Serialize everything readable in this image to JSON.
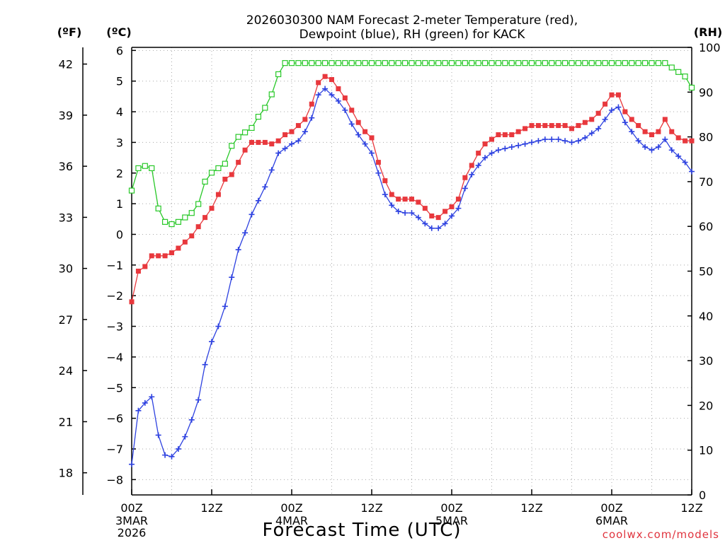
{
  "chart_data": {
    "type": "line",
    "title_lines": [
      "2026030300 NAM Forecast 2-meter Temperature (red),",
      "Dewpoint (blue), RH (green) for KACK"
    ],
    "xlabel": "Forecast Time (UTC)",
    "credit": "coolwx.com/models",
    "unit_labels": {
      "fahrenheit": "(ºF)",
      "celsius": "(ºC)",
      "rh": "(RH)"
    },
    "x_units": "forecast hour from 2026-03-03 00Z",
    "xlim": [
      0,
      84
    ],
    "x_ticks": [
      {
        "x": 0,
        "label": "00Z",
        "sublabels": [
          "3MAR",
          "2026"
        ]
      },
      {
        "x": 12,
        "label": "12Z",
        "sublabels": []
      },
      {
        "x": 24,
        "label": "00Z",
        "sublabels": [
          "4MAR"
        ]
      },
      {
        "x": 36,
        "label": "12Z",
        "sublabels": []
      },
      {
        "x": 48,
        "label": "00Z",
        "sublabels": [
          "5MAR"
        ]
      },
      {
        "x": 60,
        "label": "12Z",
        "sublabels": []
      },
      {
        "x": 72,
        "label": "00Z",
        "sublabels": [
          "6MAR"
        ]
      },
      {
        "x": 84,
        "label": "12Z",
        "sublabels": []
      }
    ],
    "y_celsius": {
      "lim": [
        -8.5,
        6.1
      ],
      "ticks": [
        -8,
        -7,
        -6,
        -5,
        -4,
        -3,
        -2,
        -1,
        0,
        1,
        2,
        3,
        4,
        5,
        6
      ],
      "tick_labels": [
        "−8",
        "−7",
        "−6",
        "−5",
        "−4",
        "−3",
        "−2",
        "−1",
        "0",
        "1",
        "2",
        "3",
        "4",
        "5",
        "6"
      ]
    },
    "y_fahrenheit": {
      "ticks": [
        18,
        21,
        24,
        27,
        30,
        33,
        36,
        39,
        42
      ]
    },
    "y_rh": {
      "lim": [
        0,
        100
      ],
      "ticks": [
        0,
        10,
        20,
        30,
        40,
        50,
        60,
        70,
        80,
        90,
        100
      ]
    },
    "grid": true,
    "series": [
      {
        "name": "Temperature",
        "color": "#e8383d",
        "marker": "filled-square",
        "axis": "celsius",
        "points": [
          [
            0,
            -2.2
          ],
          [
            1,
            -1.2
          ],
          [
            2,
            -1.05
          ],
          [
            3,
            -0.7
          ],
          [
            4,
            -0.7
          ],
          [
            5,
            -0.7
          ],
          [
            6,
            -0.6
          ],
          [
            7,
            -0.45
          ],
          [
            8,
            -0.25
          ],
          [
            9,
            -0.05
          ],
          [
            10,
            0.25
          ],
          [
            11,
            0.55
          ],
          [
            12,
            0.85
          ],
          [
            13,
            1.3
          ],
          [
            14,
            1.8
          ],
          [
            15,
            1.95
          ],
          [
            16,
            2.35
          ],
          [
            17,
            2.75
          ],
          [
            18,
            3.0
          ],
          [
            19,
            3.0
          ],
          [
            20,
            3.0
          ],
          [
            21,
            2.95
          ],
          [
            22,
            3.05
          ],
          [
            23,
            3.25
          ],
          [
            24,
            3.35
          ],
          [
            25,
            3.55
          ],
          [
            26,
            3.75
          ],
          [
            27,
            4.25
          ],
          [
            28,
            4.95
          ],
          [
            29,
            5.15
          ],
          [
            30,
            5.05
          ],
          [
            31,
            4.75
          ],
          [
            32,
            4.45
          ],
          [
            33,
            4.05
          ],
          [
            34,
            3.65
          ],
          [
            35,
            3.35
          ],
          [
            36,
            3.15
          ],
          [
            37,
            2.35
          ],
          [
            38,
            1.75
          ],
          [
            39,
            1.3
          ],
          [
            40,
            1.15
          ],
          [
            41,
            1.15
          ],
          [
            42,
            1.15
          ],
          [
            43,
            1.05
          ],
          [
            44,
            0.85
          ],
          [
            45,
            0.6
          ],
          [
            46,
            0.55
          ],
          [
            47,
            0.75
          ],
          [
            48,
            0.9
          ],
          [
            49,
            1.15
          ],
          [
            50,
            1.85
          ],
          [
            51,
            2.25
          ],
          [
            52,
            2.65
          ],
          [
            53,
            2.95
          ],
          [
            54,
            3.1
          ],
          [
            55,
            3.25
          ],
          [
            56,
            3.25
          ],
          [
            57,
            3.25
          ],
          [
            58,
            3.35
          ],
          [
            59,
            3.45
          ],
          [
            60,
            3.55
          ],
          [
            61,
            3.55
          ],
          [
            62,
            3.55
          ],
          [
            63,
            3.55
          ],
          [
            64,
            3.55
          ],
          [
            65,
            3.55
          ],
          [
            66,
            3.45
          ],
          [
            67,
            3.55
          ],
          [
            68,
            3.65
          ],
          [
            69,
            3.75
          ],
          [
            70,
            3.95
          ],
          [
            71,
            4.25
          ],
          [
            72,
            4.55
          ],
          [
            73,
            4.55
          ],
          [
            74,
            4.0
          ],
          [
            75,
            3.75
          ],
          [
            76,
            3.55
          ],
          [
            77,
            3.35
          ],
          [
            78,
            3.25
          ],
          [
            79,
            3.35
          ],
          [
            80,
            3.75
          ],
          [
            81,
            3.35
          ],
          [
            82,
            3.15
          ],
          [
            83,
            3.05
          ],
          [
            84,
            3.05
          ]
        ]
      },
      {
        "name": "Dewpoint",
        "color": "#2d41e0",
        "marker": "plus",
        "axis": "celsius",
        "points": [
          [
            0,
            -7.5
          ],
          [
            1,
            -5.75
          ],
          [
            2,
            -5.5
          ],
          [
            3,
            -5.3
          ],
          [
            4,
            -6.55
          ],
          [
            5,
            -7.2
          ],
          [
            6,
            -7.25
          ],
          [
            7,
            -7.0
          ],
          [
            8,
            -6.6
          ],
          [
            9,
            -6.05
          ],
          [
            10,
            -5.4
          ],
          [
            11,
            -4.25
          ],
          [
            12,
            -3.5
          ],
          [
            13,
            -3.0
          ],
          [
            14,
            -2.35
          ],
          [
            15,
            -1.4
          ],
          [
            16,
            -0.5
          ],
          [
            17,
            0.05
          ],
          [
            18,
            0.65
          ],
          [
            19,
            1.1
          ],
          [
            20,
            1.55
          ],
          [
            21,
            2.1
          ],
          [
            22,
            2.65
          ],
          [
            23,
            2.8
          ],
          [
            24,
            2.95
          ],
          [
            25,
            3.05
          ],
          [
            26,
            3.35
          ],
          [
            27,
            3.8
          ],
          [
            28,
            4.55
          ],
          [
            29,
            4.75
          ],
          [
            30,
            4.55
          ],
          [
            31,
            4.35
          ],
          [
            32,
            4.05
          ],
          [
            33,
            3.6
          ],
          [
            34,
            3.25
          ],
          [
            35,
            2.95
          ],
          [
            36,
            2.65
          ],
          [
            37,
            2.0
          ],
          [
            38,
            1.3
          ],
          [
            39,
            0.95
          ],
          [
            40,
            0.75
          ],
          [
            41,
            0.7
          ],
          [
            42,
            0.7
          ],
          [
            43,
            0.55
          ],
          [
            44,
            0.35
          ],
          [
            45,
            0.2
          ],
          [
            46,
            0.2
          ],
          [
            47,
            0.35
          ],
          [
            48,
            0.6
          ],
          [
            49,
            0.85
          ],
          [
            50,
            1.5
          ],
          [
            51,
            1.95
          ],
          [
            52,
            2.25
          ],
          [
            53,
            2.5
          ],
          [
            54,
            2.65
          ],
          [
            55,
            2.75
          ],
          [
            56,
            2.8
          ],
          [
            57,
            2.85
          ],
          [
            58,
            2.9
          ],
          [
            59,
            2.95
          ],
          [
            60,
            3.0
          ],
          [
            61,
            3.05
          ],
          [
            62,
            3.1
          ],
          [
            63,
            3.1
          ],
          [
            64,
            3.1
          ],
          [
            65,
            3.05
          ],
          [
            66,
            3.0
          ],
          [
            67,
            3.05
          ],
          [
            68,
            3.15
          ],
          [
            69,
            3.3
          ],
          [
            70,
            3.45
          ],
          [
            71,
            3.75
          ],
          [
            72,
            4.05
          ],
          [
            73,
            4.15
          ],
          [
            74,
            3.65
          ],
          [
            75,
            3.35
          ],
          [
            76,
            3.05
          ],
          [
            77,
            2.85
          ],
          [
            78,
            2.75
          ],
          [
            79,
            2.85
          ],
          [
            80,
            3.1
          ],
          [
            81,
            2.75
          ],
          [
            82,
            2.55
          ],
          [
            83,
            2.35
          ],
          [
            84,
            2.05
          ]
        ]
      },
      {
        "name": "RH",
        "color": "#28c828",
        "marker": "open-square",
        "axis": "rh",
        "points": [
          [
            0,
            68
          ],
          [
            1,
            73
          ],
          [
            2,
            73.5
          ],
          [
            3,
            73
          ],
          [
            4,
            64
          ],
          [
            5,
            61
          ],
          [
            6,
            60.5
          ],
          [
            7,
            61
          ],
          [
            8,
            62
          ],
          [
            9,
            63
          ],
          [
            10,
            65
          ],
          [
            11,
            70
          ],
          [
            12,
            72
          ],
          [
            13,
            73
          ],
          [
            14,
            74
          ],
          [
            15,
            78
          ],
          [
            16,
            80
          ],
          [
            17,
            81
          ],
          [
            18,
            82
          ],
          [
            19,
            84.5
          ],
          [
            20,
            86.5
          ],
          [
            21,
            89.5
          ],
          [
            22,
            94
          ],
          [
            23,
            96.5
          ],
          [
            24,
            96.5
          ],
          [
            25,
            96.5
          ],
          [
            26,
            96.5
          ],
          [
            27,
            96.5
          ],
          [
            28,
            96.5
          ],
          [
            29,
            96.5
          ],
          [
            30,
            96.5
          ],
          [
            31,
            96.5
          ],
          [
            32,
            96.5
          ],
          [
            33,
            96.5
          ],
          [
            34,
            96.5
          ],
          [
            35,
            96.5
          ],
          [
            36,
            96.5
          ],
          [
            37,
            96.5
          ],
          [
            38,
            96.5
          ],
          [
            39,
            96.5
          ],
          [
            40,
            96.5
          ],
          [
            41,
            96.5
          ],
          [
            42,
            96.5
          ],
          [
            43,
            96.5
          ],
          [
            44,
            96.5
          ],
          [
            45,
            96.5
          ],
          [
            46,
            96.5
          ],
          [
            47,
            96.5
          ],
          [
            48,
            96.5
          ],
          [
            49,
            96.5
          ],
          [
            50,
            96.5
          ],
          [
            51,
            96.5
          ],
          [
            52,
            96.5
          ],
          [
            53,
            96.5
          ],
          [
            54,
            96.5
          ],
          [
            55,
            96.5
          ],
          [
            56,
            96.5
          ],
          [
            57,
            96.5
          ],
          [
            58,
            96.5
          ],
          [
            59,
            96.5
          ],
          [
            60,
            96.5
          ],
          [
            61,
            96.5
          ],
          [
            62,
            96.5
          ],
          [
            63,
            96.5
          ],
          [
            64,
            96.5
          ],
          [
            65,
            96.5
          ],
          [
            66,
            96.5
          ],
          [
            67,
            96.5
          ],
          [
            68,
            96.5
          ],
          [
            69,
            96.5
          ],
          [
            70,
            96.5
          ],
          [
            71,
            96.5
          ],
          [
            72,
            96.5
          ],
          [
            73,
            96.5
          ],
          [
            74,
            96.5
          ],
          [
            75,
            96.5
          ],
          [
            76,
            96.5
          ],
          [
            77,
            96.5
          ],
          [
            78,
            96.5
          ],
          [
            79,
            96.5
          ],
          [
            80,
            96.5
          ],
          [
            81,
            95.5
          ],
          [
            82,
            94.5
          ],
          [
            83,
            93.5
          ],
          [
            84,
            91
          ]
        ]
      }
    ]
  }
}
